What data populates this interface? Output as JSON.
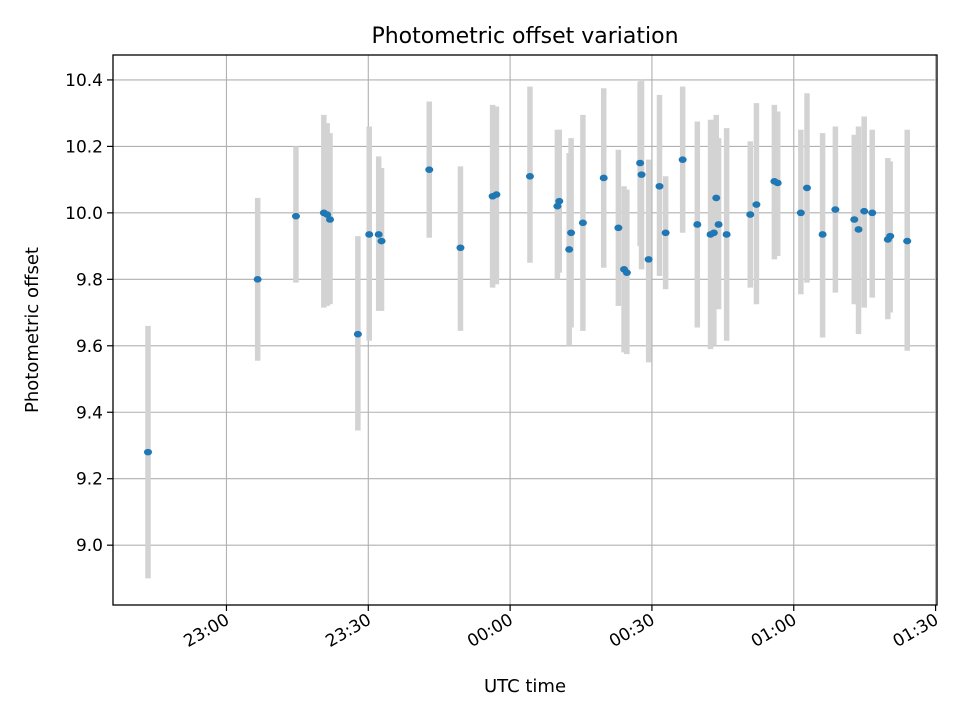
{
  "chart_data": {
    "type": "scatter",
    "title": "Photometric offset variation",
    "xlabel": "UTC time",
    "ylabel": "Photometric offset",
    "x_ticks": [
      {
        "t": -60,
        "label": "23:00"
      },
      {
        "t": -30,
        "label": "23:30"
      },
      {
        "t": 0,
        "label": "00:00"
      },
      {
        "t": 30,
        "label": "00:30"
      },
      {
        "t": 60,
        "label": "01:00"
      },
      {
        "t": 90,
        "label": "01:30"
      }
    ],
    "y_ticks": [
      {
        "v": 9.0,
        "label": "9.0"
      },
      {
        "v": 9.2,
        "label": "9.2"
      },
      {
        "v": 9.4,
        "label": "9.4"
      },
      {
        "v": 9.6,
        "label": "9.6"
      },
      {
        "v": 9.8,
        "label": "9.8"
      },
      {
        "v": 10.0,
        "label": "10.0"
      },
      {
        "v": 10.2,
        "label": "10.2"
      },
      {
        "v": 10.4,
        "label": "10.4"
      }
    ],
    "x_range_minutes": [
      -84,
      90.3
    ],
    "ylim": [
      8.82,
      10.475
    ],
    "grid": true,
    "point_color": "#1f77b4",
    "errorbar_color": "#d3d3d3",
    "points": [
      {
        "t": -76.6,
        "y": 9.28,
        "lo": 8.9,
        "hi": 9.66
      },
      {
        "t": -53.4,
        "y": 9.8,
        "lo": 9.555,
        "hi": 10.045
      },
      {
        "t": -45.3,
        "y": 9.99,
        "lo": 9.79,
        "hi": 10.2
      },
      {
        "t": -39.4,
        "y": 10.0,
        "lo": 9.715,
        "hi": 10.295
      },
      {
        "t": -38.7,
        "y": 9.995,
        "lo": 9.72,
        "hi": 10.27
      },
      {
        "t": -38.1,
        "y": 9.98,
        "lo": 9.725,
        "hi": 10.24
      },
      {
        "t": -32.2,
        "y": 9.635,
        "lo": 9.345,
        "hi": 9.93
      },
      {
        "t": -29.8,
        "y": 9.935,
        "lo": 9.615,
        "hi": 10.26
      },
      {
        "t": -27.8,
        "y": 9.935,
        "lo": 9.705,
        "hi": 10.17
      },
      {
        "t": -27.2,
        "y": 9.915,
        "lo": 9.705,
        "hi": 10.135
      },
      {
        "t": -17.1,
        "y": 10.13,
        "lo": 9.925,
        "hi": 10.335
      },
      {
        "t": -10.5,
        "y": 9.895,
        "lo": 9.645,
        "hi": 10.14
      },
      {
        "t": -3.7,
        "y": 10.05,
        "lo": 9.775,
        "hi": 10.325
      },
      {
        "t": -2.9,
        "y": 10.055,
        "lo": 9.785,
        "hi": 10.32
      },
      {
        "t": 4.2,
        "y": 10.11,
        "lo": 9.85,
        "hi": 10.38
      },
      {
        "t": 10.0,
        "y": 10.02,
        "lo": 9.8,
        "hi": 10.25
      },
      {
        "t": 10.4,
        "y": 10.035,
        "lo": 9.82,
        "hi": 10.25
      },
      {
        "t": 12.5,
        "y": 9.89,
        "lo": 9.6,
        "hi": 10.18
      },
      {
        "t": 12.9,
        "y": 9.94,
        "lo": 9.655,
        "hi": 10.225
      },
      {
        "t": 15.4,
        "y": 9.97,
        "lo": 9.645,
        "hi": 10.295
      },
      {
        "t": 19.8,
        "y": 10.105,
        "lo": 9.835,
        "hi": 10.375
      },
      {
        "t": 22.9,
        "y": 9.955,
        "lo": 9.72,
        "hi": 10.19
      },
      {
        "t": 24.1,
        "y": 9.83,
        "lo": 9.58,
        "hi": 10.08
      },
      {
        "t": 24.7,
        "y": 9.82,
        "lo": 9.575,
        "hi": 10.07
      },
      {
        "t": 27.5,
        "y": 10.15,
        "lo": 9.9,
        "hi": 10.395
      },
      {
        "t": 27.8,
        "y": 10.115,
        "lo": 9.83,
        "hi": 10.4
      },
      {
        "t": 29.3,
        "y": 9.86,
        "lo": 9.55,
        "hi": 10.16
      },
      {
        "t": 31.6,
        "y": 10.08,
        "lo": 9.81,
        "hi": 10.355
      },
      {
        "t": 32.9,
        "y": 9.94,
        "lo": 9.77,
        "hi": 10.11
      },
      {
        "t": 36.5,
        "y": 10.16,
        "lo": 9.94,
        "hi": 10.38
      },
      {
        "t": 39.6,
        "y": 9.965,
        "lo": 9.655,
        "hi": 10.275
      },
      {
        "t": 42.4,
        "y": 9.935,
        "lo": 9.59,
        "hi": 10.28
      },
      {
        "t": 43.1,
        "y": 9.94,
        "lo": 9.6,
        "hi": 10.28
      },
      {
        "t": 43.6,
        "y": 10.045,
        "lo": 9.8,
        "hi": 10.295
      },
      {
        "t": 44.1,
        "y": 9.965,
        "lo": 9.71,
        "hi": 10.225
      },
      {
        "t": 45.8,
        "y": 9.935,
        "lo": 9.615,
        "hi": 10.255
      },
      {
        "t": 50.8,
        "y": 9.995,
        "lo": 9.775,
        "hi": 10.215
      },
      {
        "t": 52.1,
        "y": 10.025,
        "lo": 9.725,
        "hi": 10.33
      },
      {
        "t": 55.9,
        "y": 10.095,
        "lo": 9.86,
        "hi": 10.325
      },
      {
        "t": 56.6,
        "y": 10.09,
        "lo": 9.87,
        "hi": 10.305
      },
      {
        "t": 61.5,
        "y": 10.0,
        "lo": 9.755,
        "hi": 10.25
      },
      {
        "t": 62.8,
        "y": 10.075,
        "lo": 9.79,
        "hi": 10.36
      },
      {
        "t": 66.1,
        "y": 9.935,
        "lo": 9.625,
        "hi": 10.24
      },
      {
        "t": 68.8,
        "y": 10.01,
        "lo": 9.76,
        "hi": 10.26
      },
      {
        "t": 72.8,
        "y": 9.98,
        "lo": 9.725,
        "hi": 10.235
      },
      {
        "t": 73.7,
        "y": 9.95,
        "lo": 9.635,
        "hi": 10.26
      },
      {
        "t": 74.9,
        "y": 10.005,
        "lo": 9.715,
        "hi": 10.29
      },
      {
        "t": 76.6,
        "y": 10.0,
        "lo": 9.745,
        "hi": 10.25
      },
      {
        "t": 79.9,
        "y": 9.92,
        "lo": 9.68,
        "hi": 10.165
      },
      {
        "t": 80.4,
        "y": 9.93,
        "lo": 9.7,
        "hi": 10.155
      },
      {
        "t": 84.0,
        "y": 9.915,
        "lo": 9.585,
        "hi": 10.25
      }
    ]
  }
}
